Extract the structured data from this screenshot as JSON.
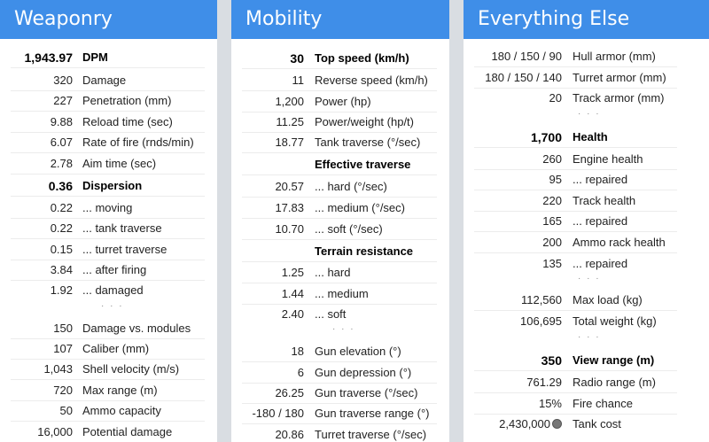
{
  "weaponry": {
    "title": "Weaponry",
    "rows": [
      {
        "value": "1,943.97",
        "label": "DPM"
      },
      {
        "value": "320",
        "label": "Damage"
      },
      {
        "value": "227",
        "label": "Penetration (mm)"
      },
      {
        "value": "9.88",
        "label": "Reload time (sec)"
      },
      {
        "value": "6.07",
        "label": "Rate of fire (rnds/min)"
      },
      {
        "value": "2.78",
        "label": "Aim time (sec)"
      },
      {
        "value": "0.36",
        "label": "Dispersion"
      },
      {
        "value": "0.22",
        "label": "... moving"
      },
      {
        "value": "0.22",
        "label": "... tank traverse"
      },
      {
        "value": "0.15",
        "label": "... turret traverse"
      },
      {
        "value": "3.84",
        "label": "... after firing"
      },
      {
        "value": "1.92",
        "label": "... damaged"
      },
      {
        "value": "150",
        "label": "Damage vs. modules"
      },
      {
        "value": "107",
        "label": "Caliber (mm)"
      },
      {
        "value": "1,043",
        "label": "Shell velocity (m/s)"
      },
      {
        "value": "720",
        "label": "Max range (m)"
      },
      {
        "value": "50",
        "label": "Ammo capacity"
      },
      {
        "value": "16,000",
        "label": "Potential damage"
      }
    ]
  },
  "mobility": {
    "title": "Mobility",
    "rows": [
      {
        "value": "30",
        "label": "Top speed (km/h)"
      },
      {
        "value": "11",
        "label": "Reverse speed (km/h)"
      },
      {
        "value": "1,200",
        "label": "Power (hp)"
      },
      {
        "value": "11.25",
        "label": "Power/weight (hp/t)"
      },
      {
        "value": "18.77",
        "label": "Tank traverse (°/sec)"
      },
      {
        "value": "",
        "label": "Effective traverse"
      },
      {
        "value": "20.57",
        "label": "... hard (°/sec)"
      },
      {
        "value": "17.83",
        "label": "... medium (°/sec)"
      },
      {
        "value": "10.70",
        "label": "... soft (°/sec)"
      },
      {
        "value": "",
        "label": "Terrain resistance"
      },
      {
        "value": "1.25",
        "label": "... hard"
      },
      {
        "value": "1.44",
        "label": "... medium"
      },
      {
        "value": "2.40",
        "label": "... soft"
      },
      {
        "value": "18",
        "label": "Gun elevation (°)"
      },
      {
        "value": "6",
        "label": "Gun depression (°)"
      },
      {
        "value": "26.25",
        "label": "Gun traverse (°/sec)"
      },
      {
        "value": "-180 / 180",
        "label": "Gun traverse range (°)"
      },
      {
        "value": "20.86",
        "label": "Turret traverse (°/sec)"
      }
    ]
  },
  "everything_else": {
    "title": "Everything Else",
    "rows": [
      {
        "value": "180 / 150 / 90",
        "label": "Hull armor (mm)"
      },
      {
        "value": "180 / 150 / 140",
        "label": "Turret armor (mm)"
      },
      {
        "value": "20",
        "label": "Track armor (mm)"
      },
      {
        "value": "1,700",
        "label": "Health"
      },
      {
        "value": "260",
        "label": "Engine health"
      },
      {
        "value": "95",
        "label": "... repaired"
      },
      {
        "value": "220",
        "label": "Track health"
      },
      {
        "value": "165",
        "label": "... repaired"
      },
      {
        "value": "200",
        "label": "Ammo rack health"
      },
      {
        "value": "135",
        "label": "... repaired"
      },
      {
        "value": "112,560",
        "label": "Max load (kg)"
      },
      {
        "value": "106,695",
        "label": "Total weight (kg)"
      },
      {
        "value": "350",
        "label": "View range (m)"
      },
      {
        "value": "761.29",
        "label": "Radio range (m)"
      },
      {
        "value": "15%",
        "label": "Fire chance"
      },
      {
        "value": "2,430,000",
        "label": "Tank cost",
        "icon": "credits-icon"
      }
    ]
  },
  "ellipsis": "· · ·"
}
